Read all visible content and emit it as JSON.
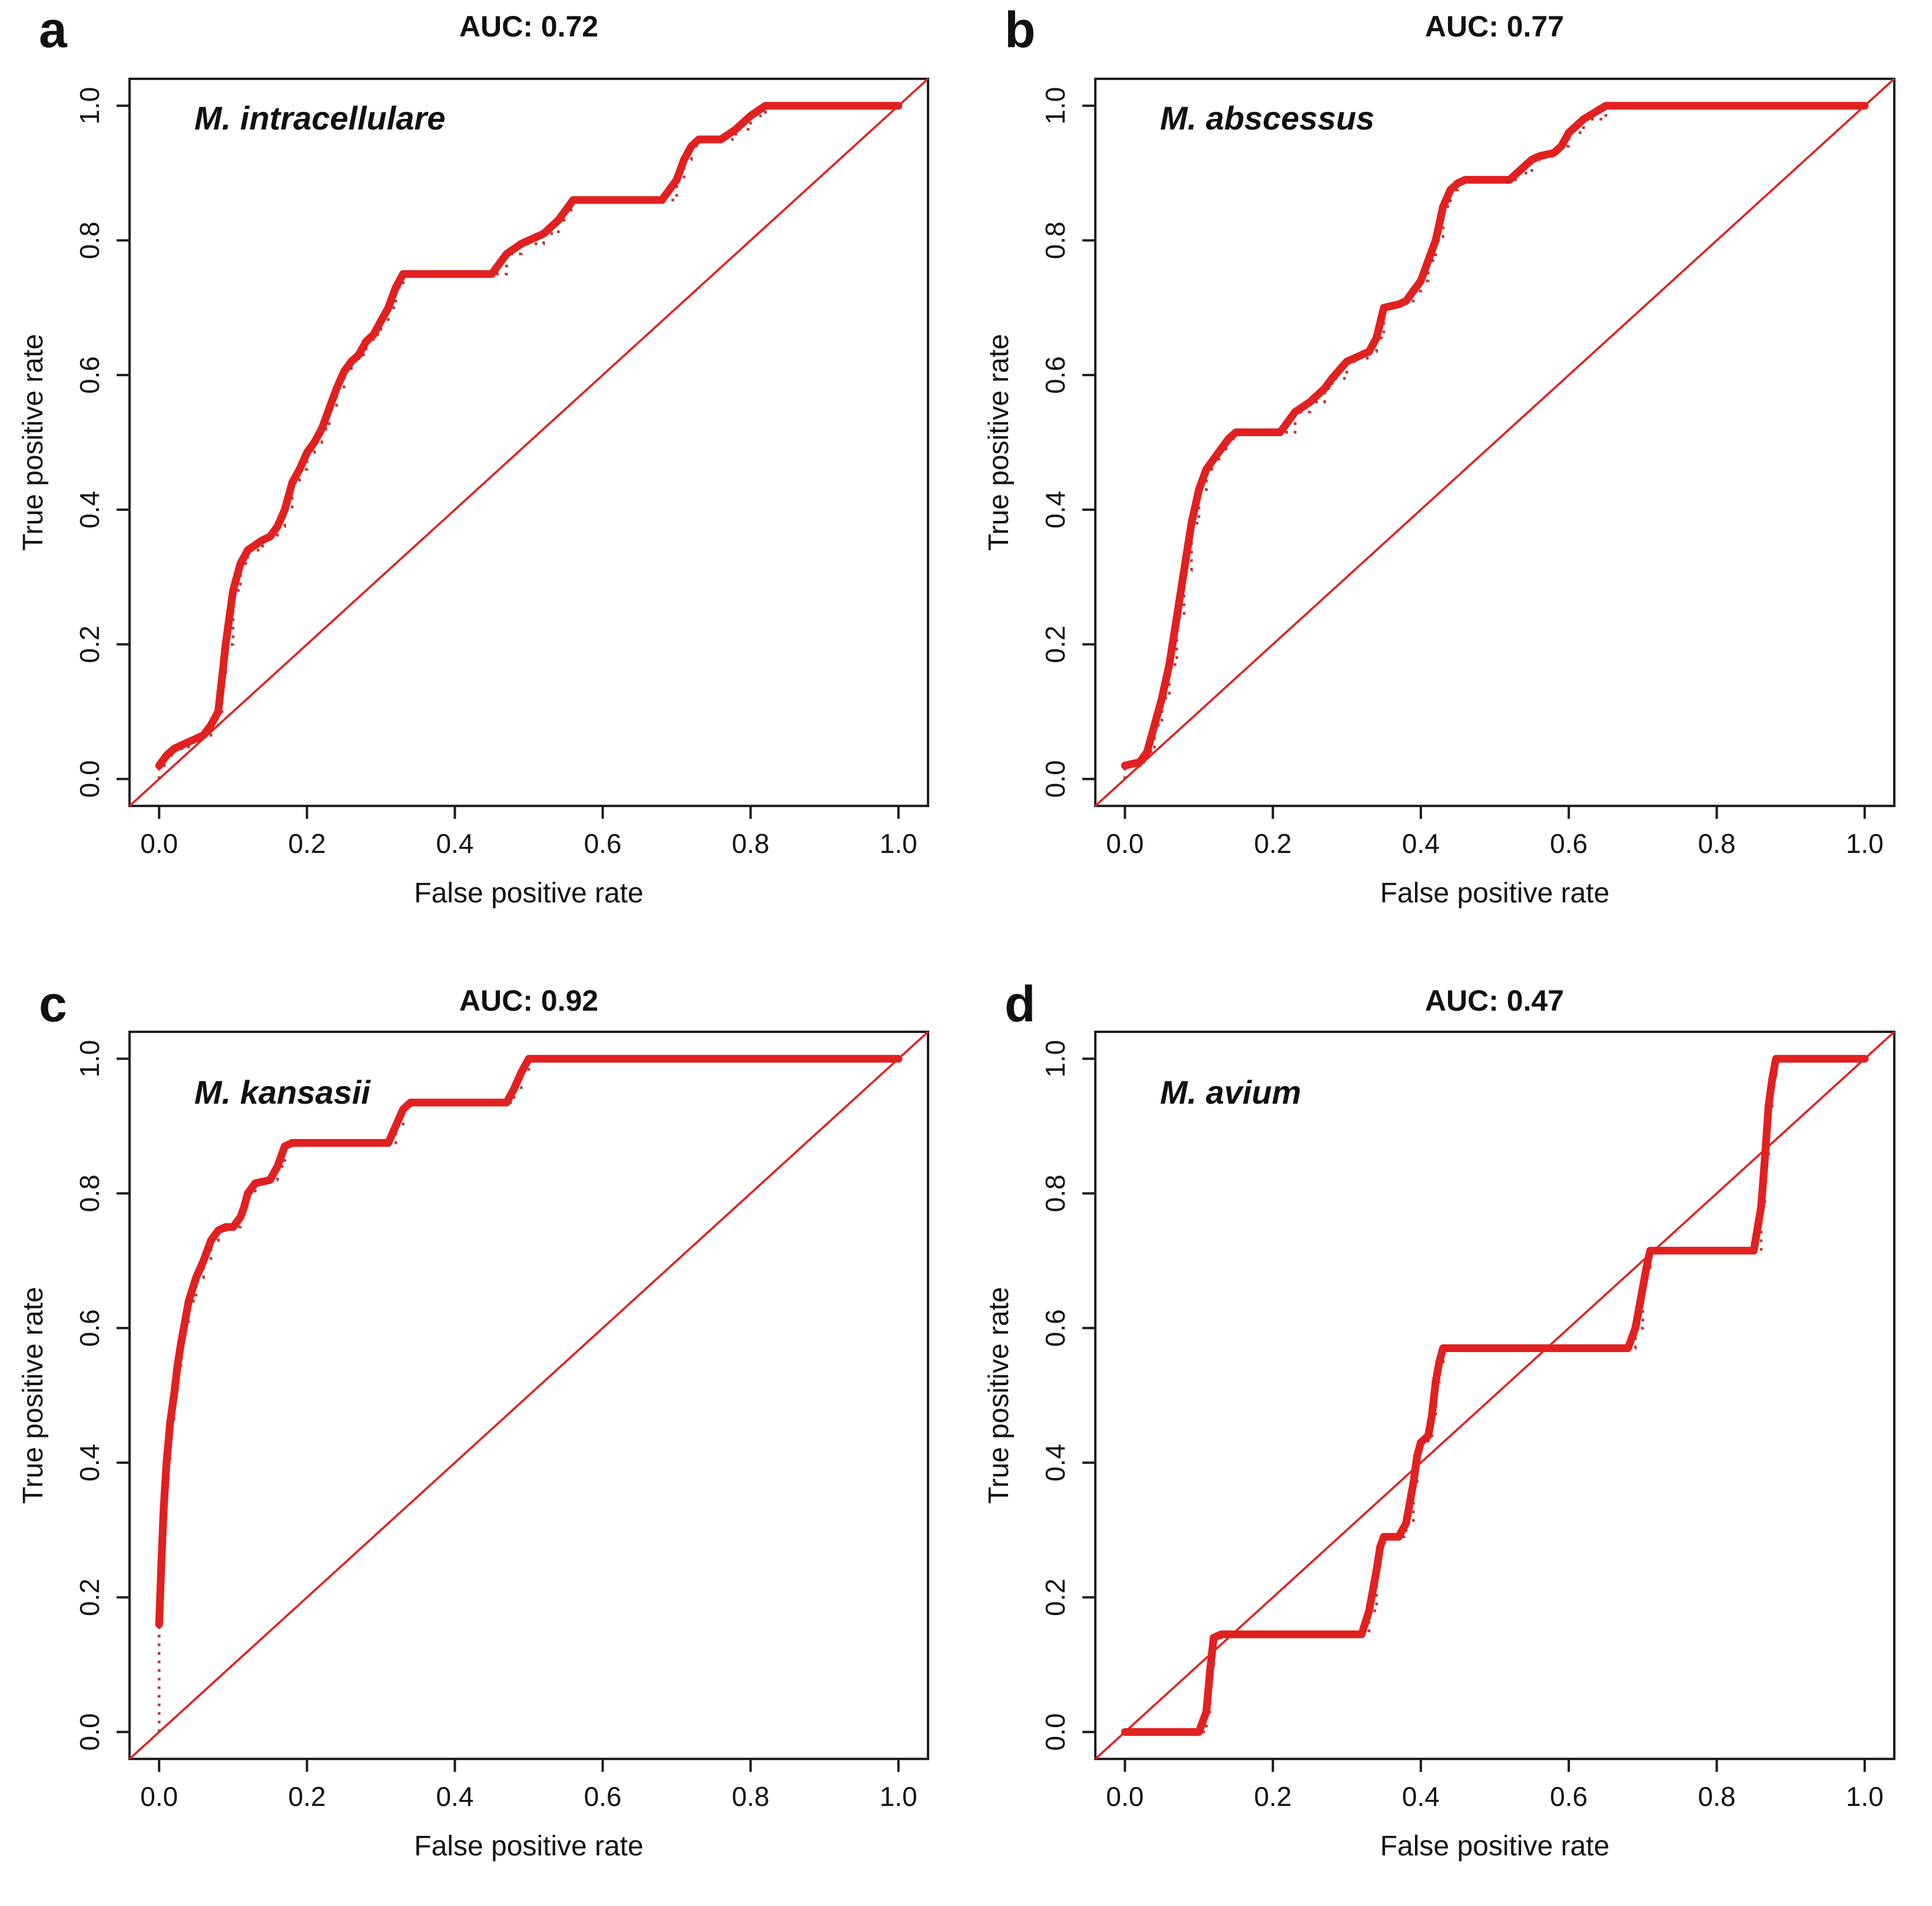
{
  "figure": {
    "description": "Four ROC curve panels (a-d) for nontuberculous mycobacteria species classification",
    "background": "#ffffff"
  },
  "style": {
    "curve_color": "#e12120",
    "empirical_dotted_color": "#b23b3b",
    "diagonal_color": "#e12120",
    "axis_color": "#1c1c1c",
    "text_color": "#111111"
  },
  "chart_data": [
    {
      "type": "line",
      "panel_letter": "a",
      "title": "AUC: 0.72",
      "auc": 0.72,
      "species": "M. intracellulare",
      "xlabel": "False positive rate",
      "ylabel": "True positive rate",
      "xlim": [
        0,
        1
      ],
      "ylim": [
        0,
        1
      ],
      "x_ticks": [
        0,
        0.2,
        0.4,
        0.6,
        0.8,
        1
      ],
      "x_tick_labels": [
        "0.0",
        "0.2",
        "0.4",
        "0.6",
        "0.8",
        "1.0"
      ],
      "y_ticks": [
        0,
        0.2,
        0.4,
        0.6,
        0.8,
        1
      ],
      "y_tick_labels": [
        "0.0",
        "0.2",
        "0.4",
        "0.6",
        "0.8",
        "1.0"
      ],
      "grid": false,
      "diagonal_reference": true,
      "roc_curve": [
        [
          0,
          0.02
        ],
        [
          0.01,
          0.035
        ],
        [
          0.02,
          0.045
        ],
        [
          0.04,
          0.055
        ],
        [
          0.05,
          0.06
        ],
        [
          0.06,
          0.065
        ],
        [
          0.07,
          0.08
        ],
        [
          0.08,
          0.1
        ],
        [
          0.085,
          0.15
        ],
        [
          0.09,
          0.2
        ],
        [
          0.1,
          0.28
        ],
        [
          0.11,
          0.32
        ],
        [
          0.12,
          0.34
        ],
        [
          0.14,
          0.355
        ],
        [
          0.15,
          0.36
        ],
        [
          0.16,
          0.375
        ],
        [
          0.17,
          0.4
        ],
        [
          0.18,
          0.44
        ],
        [
          0.19,
          0.46
        ],
        [
          0.2,
          0.485
        ],
        [
          0.21,
          0.5
        ],
        [
          0.22,
          0.52
        ],
        [
          0.23,
          0.55
        ],
        [
          0.24,
          0.58
        ],
        [
          0.25,
          0.605
        ],
        [
          0.26,
          0.62
        ],
        [
          0.27,
          0.63
        ],
        [
          0.28,
          0.65
        ],
        [
          0.29,
          0.66
        ],
        [
          0.3,
          0.68
        ],
        [
          0.31,
          0.7
        ],
        [
          0.32,
          0.73
        ],
        [
          0.33,
          0.75
        ],
        [
          0.45,
          0.75
        ],
        [
          0.47,
          0.78
        ],
        [
          0.49,
          0.795
        ],
        [
          0.52,
          0.81
        ],
        [
          0.54,
          0.83
        ],
        [
          0.55,
          0.845
        ],
        [
          0.56,
          0.86
        ],
        [
          0.68,
          0.86
        ],
        [
          0.7,
          0.89
        ],
        [
          0.71,
          0.92
        ],
        [
          0.72,
          0.94
        ],
        [
          0.73,
          0.95
        ],
        [
          0.76,
          0.95
        ],
        [
          0.78,
          0.965
        ],
        [
          0.8,
          0.985
        ],
        [
          0.82,
          1
        ],
        [
          1,
          1
        ]
      ]
    },
    {
      "type": "line",
      "panel_letter": "b",
      "title": "AUC: 0.77",
      "auc": 0.77,
      "species": "M. abscessus",
      "xlabel": "False positive rate",
      "ylabel": "True positive rate",
      "xlim": [
        0,
        1
      ],
      "ylim": [
        0,
        1
      ],
      "x_ticks": [
        0,
        0.2,
        0.4,
        0.6,
        0.8,
        1
      ],
      "x_tick_labels": [
        "0.0",
        "0.2",
        "0.4",
        "0.6",
        "0.8",
        "1.0"
      ],
      "y_ticks": [
        0,
        0.2,
        0.4,
        0.6,
        0.8,
        1
      ],
      "y_tick_labels": [
        "0.0",
        "0.2",
        "0.4",
        "0.6",
        "0.8",
        "1.0"
      ],
      "grid": false,
      "diagonal_reference": true,
      "roc_curve": [
        [
          0,
          0.02
        ],
        [
          0.02,
          0.025
        ],
        [
          0.03,
          0.04
        ],
        [
          0.04,
          0.08
        ],
        [
          0.05,
          0.12
        ],
        [
          0.06,
          0.17
        ],
        [
          0.07,
          0.24
        ],
        [
          0.08,
          0.31
        ],
        [
          0.09,
          0.38
        ],
        [
          0.1,
          0.43
        ],
        [
          0.11,
          0.46
        ],
        [
          0.12,
          0.475
        ],
        [
          0.13,
          0.49
        ],
        [
          0.14,
          0.505
        ],
        [
          0.15,
          0.515
        ],
        [
          0.21,
          0.515
        ],
        [
          0.23,
          0.545
        ],
        [
          0.25,
          0.56
        ],
        [
          0.27,
          0.58
        ],
        [
          0.28,
          0.595
        ],
        [
          0.3,
          0.62
        ],
        [
          0.31,
          0.625
        ],
        [
          0.33,
          0.635
        ],
        [
          0.34,
          0.655
        ],
        [
          0.35,
          0.7
        ],
        [
          0.37,
          0.705
        ],
        [
          0.38,
          0.71
        ],
        [
          0.39,
          0.725
        ],
        [
          0.4,
          0.74
        ],
        [
          0.41,
          0.77
        ],
        [
          0.42,
          0.8
        ],
        [
          0.43,
          0.85
        ],
        [
          0.44,
          0.875
        ],
        [
          0.45,
          0.885
        ],
        [
          0.46,
          0.89
        ],
        [
          0.52,
          0.89
        ],
        [
          0.53,
          0.9
        ],
        [
          0.55,
          0.92
        ],
        [
          0.56,
          0.925
        ],
        [
          0.58,
          0.93
        ],
        [
          0.59,
          0.94
        ],
        [
          0.6,
          0.96
        ],
        [
          0.62,
          0.98
        ],
        [
          0.65,
          1
        ],
        [
          1,
          1
        ]
      ]
    },
    {
      "type": "line",
      "panel_letter": "c",
      "title": "AUC: 0.92",
      "auc": 0.92,
      "species": "M. kansasii",
      "xlabel": "False positive rate",
      "ylabel": "True positive rate",
      "xlim": [
        0,
        1
      ],
      "ylim": [
        0,
        1
      ],
      "x_ticks": [
        0,
        0.2,
        0.4,
        0.6,
        0.8,
        1
      ],
      "x_tick_labels": [
        "0.0",
        "0.2",
        "0.4",
        "0.6",
        "0.8",
        "1.0"
      ],
      "y_ticks": [
        0,
        0.2,
        0.4,
        0.6,
        0.8,
        1
      ],
      "y_tick_labels": [
        "0.0",
        "0.2",
        "0.4",
        "0.6",
        "0.8",
        "1.0"
      ],
      "grid": false,
      "diagonal_reference": true,
      "roc_curve": [
        [
          0,
          0.16
        ],
        [
          0.003,
          0.25
        ],
        [
          0.006,
          0.33
        ],
        [
          0.01,
          0.4
        ],
        [
          0.015,
          0.46
        ],
        [
          0.02,
          0.5
        ],
        [
          0.025,
          0.545
        ],
        [
          0.03,
          0.58
        ],
        [
          0.035,
          0.61
        ],
        [
          0.04,
          0.64
        ],
        [
          0.05,
          0.675
        ],
        [
          0.06,
          0.7
        ],
        [
          0.07,
          0.73
        ],
        [
          0.08,
          0.745
        ],
        [
          0.09,
          0.75
        ],
        [
          0.1,
          0.75
        ],
        [
          0.11,
          0.765
        ],
        [
          0.115,
          0.78
        ],
        [
          0.12,
          0.8
        ],
        [
          0.13,
          0.815
        ],
        [
          0.15,
          0.82
        ],
        [
          0.16,
          0.84
        ],
        [
          0.17,
          0.87
        ],
        [
          0.18,
          0.875
        ],
        [
          0.31,
          0.875
        ],
        [
          0.32,
          0.9
        ],
        [
          0.33,
          0.925
        ],
        [
          0.34,
          0.935
        ],
        [
          0.47,
          0.935
        ],
        [
          0.48,
          0.955
        ],
        [
          0.49,
          0.98
        ],
        [
          0.5,
          1
        ],
        [
          1,
          1
        ]
      ]
    },
    {
      "type": "line",
      "panel_letter": "d",
      "title": "AUC: 0.47",
      "auc": 0.47,
      "species": "M. avium",
      "xlabel": "False positive rate",
      "ylabel": "True positive rate",
      "xlim": [
        0,
        1
      ],
      "ylim": [
        0,
        1
      ],
      "x_ticks": [
        0,
        0.2,
        0.4,
        0.6,
        0.8,
        1
      ],
      "x_tick_labels": [
        "0.0",
        "0.2",
        "0.4",
        "0.6",
        "0.8",
        "1.0"
      ],
      "y_ticks": [
        0,
        0.2,
        0.4,
        0.6,
        0.8,
        1
      ],
      "y_tick_labels": [
        "0.0",
        "0.2",
        "0.4",
        "0.6",
        "0.8",
        "1.0"
      ],
      "grid": false,
      "diagonal_reference": true,
      "roc_curve": [
        [
          0,
          0
        ],
        [
          0.1,
          0
        ],
        [
          0.11,
          0.03
        ],
        [
          0.115,
          0.09
        ],
        [
          0.12,
          0.14
        ],
        [
          0.13,
          0.145
        ],
        [
          0.32,
          0.145
        ],
        [
          0.33,
          0.18
        ],
        [
          0.34,
          0.24
        ],
        [
          0.345,
          0.275
        ],
        [
          0.35,
          0.29
        ],
        [
          0.37,
          0.29
        ],
        [
          0.38,
          0.31
        ],
        [
          0.39,
          0.37
        ],
        [
          0.395,
          0.41
        ],
        [
          0.4,
          0.43
        ],
        [
          0.41,
          0.44
        ],
        [
          0.415,
          0.47
        ],
        [
          0.42,
          0.52
        ],
        [
          0.425,
          0.55
        ],
        [
          0.43,
          0.57
        ],
        [
          0.68,
          0.57
        ],
        [
          0.69,
          0.6
        ],
        [
          0.7,
          0.66
        ],
        [
          0.705,
          0.69
        ],
        [
          0.71,
          0.715
        ],
        [
          0.85,
          0.715
        ],
        [
          0.86,
          0.78
        ],
        [
          0.865,
          0.85
        ],
        [
          0.87,
          0.93
        ],
        [
          0.875,
          0.97
        ],
        [
          0.88,
          1
        ],
        [
          1,
          1
        ]
      ]
    }
  ]
}
